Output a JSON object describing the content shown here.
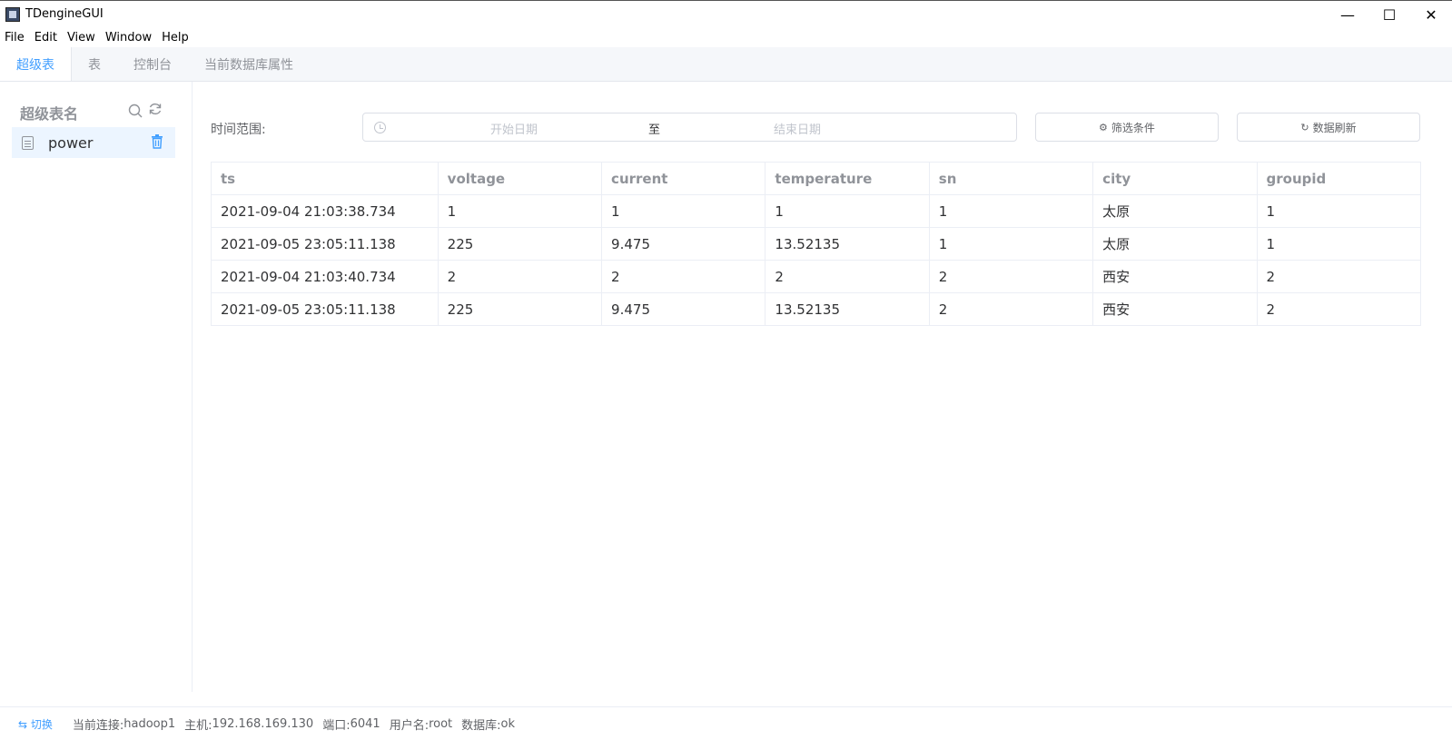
{
  "window": {
    "title": "TDengineGUI",
    "minimize": "—",
    "maximize": "☐",
    "close": "✕"
  },
  "menu": [
    "File",
    "Edit",
    "View",
    "Window",
    "Help"
  ],
  "tabs": [
    {
      "label": "超级表",
      "active": true
    },
    {
      "label": "表",
      "active": false
    },
    {
      "label": "控制台",
      "active": false
    },
    {
      "label": "当前数据库属性",
      "active": false
    }
  ],
  "sidebar": {
    "header": "超级表名",
    "items": [
      {
        "name": "power"
      }
    ]
  },
  "filter": {
    "time_label": "时间范围:",
    "start_placeholder": "开始日期",
    "separator": "至",
    "end_placeholder": "结束日期",
    "filter_button": "筛选条件",
    "refresh_button": "数据刷新"
  },
  "table": {
    "columns": [
      "ts",
      "voltage",
      "current",
      "temperature",
      "sn",
      "city",
      "groupid"
    ],
    "rows": [
      [
        "2021-09-04 21:03:38.734",
        "1",
        "1",
        "1",
        "1",
        "太原",
        "1"
      ],
      [
        "2021-09-05 23:05:11.138",
        "225",
        "9.475",
        "13.52135",
        "1",
        "太原",
        "1"
      ],
      [
        "2021-09-04 21:03:40.734",
        "2",
        "2",
        "2",
        "2",
        "西安",
        "2"
      ],
      [
        "2021-09-05 23:05:11.138",
        "225",
        "9.475",
        "13.52135",
        "2",
        "西安",
        "2"
      ]
    ]
  },
  "status": {
    "switch_label": "⇆ 切换",
    "connection_label": "当前连接:",
    "connection": "hadoop1",
    "host_label": "主机:",
    "host": "192.168.169.130",
    "port_label": "端口:",
    "port": "6041",
    "user_label": "用户名:",
    "user": "root",
    "db_label": "数据库:",
    "db": "ok"
  },
  "colors": {
    "accent": "#409eff",
    "header_text": "#909399",
    "border": "#ebeef5"
  }
}
